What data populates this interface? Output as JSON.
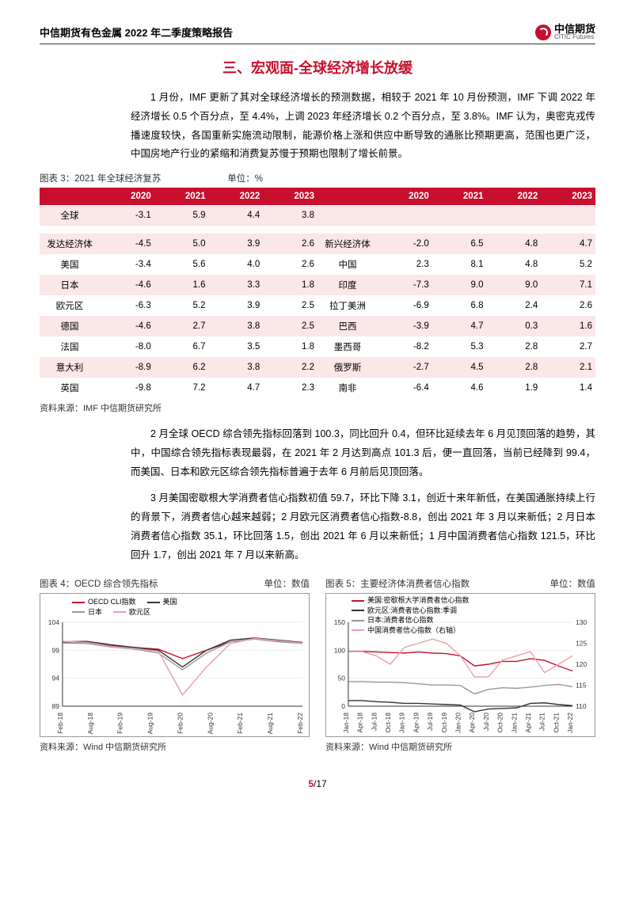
{
  "header": {
    "doc_title": "中信期货有色金属 2022 年二季度策略报告",
    "logo_cn": "中信期货",
    "logo_en": "CITIC Futures"
  },
  "section_title": "三、宏观面-全球经济增长放缓",
  "para1": "1 月份，IMF 更新了其对全球经济增长的预测数据，相较于 2021 年 10 月份预测，IMF 下调 2022 年经济增长 0.5 个百分点，至 4.4%，上调 2023 年经济增长 0.2 个百分点，至 3.8%。IMF 认为，奥密克戎传播速度较快，各国重新实施流动限制，能源价格上涨和供应中断导致的通胀比预期更高，范围也更广泛，中国房地产行业的紧缩和消费复苏慢于预期也限制了增长前景。",
  "table3": {
    "caption_left": "图表 3：2021 年全球经济复苏",
    "caption_unit": "单位：%",
    "header_years": [
      "2020",
      "2021",
      "2022",
      "2023"
    ],
    "left_rows": [
      {
        "label": "全球",
        "v": [
          "-3.1",
          "5.9",
          "4.4",
          "3.8"
        ],
        "alt": true
      },
      {
        "label": "",
        "v": [
          "",
          "",
          "",
          ""
        ],
        "alt": false
      },
      {
        "label": "发达经济体",
        "v": [
          "-4.5",
          "5.0",
          "3.9",
          "2.6"
        ],
        "alt": true
      },
      {
        "label": "美国",
        "v": [
          "-3.4",
          "5.6",
          "4.0",
          "2.6"
        ],
        "alt": false
      },
      {
        "label": "日本",
        "v": [
          "-4.6",
          "1.6",
          "3.3",
          "1.8"
        ],
        "alt": true
      },
      {
        "label": "欧元区",
        "v": [
          "-6.3",
          "5.2",
          "3.9",
          "2.5"
        ],
        "alt": false
      },
      {
        "label": "德国",
        "v": [
          "-4.6",
          "2.7",
          "3.8",
          "2.5"
        ],
        "alt": true
      },
      {
        "label": "法国",
        "v": [
          "-8.0",
          "6.7",
          "3.5",
          "1.8"
        ],
        "alt": false
      },
      {
        "label": "意大利",
        "v": [
          "-8.9",
          "6.2",
          "3.8",
          "2.2"
        ],
        "alt": true
      },
      {
        "label": "英国",
        "v": [
          "-9.8",
          "7.2",
          "4.7",
          "2.3"
        ],
        "alt": false
      }
    ],
    "right_rows": [
      {
        "label": "",
        "v": [
          "",
          "",
          "",
          ""
        ]
      },
      {
        "label": "",
        "v": [
          "",
          "",
          "",
          ""
        ]
      },
      {
        "label": "新兴经济体",
        "v": [
          "-2.0",
          "6.5",
          "4.8",
          "4.7"
        ]
      },
      {
        "label": "中国",
        "v": [
          "2.3",
          "8.1",
          "4.8",
          "5.2"
        ]
      },
      {
        "label": "印度",
        "v": [
          "-7.3",
          "9.0",
          "9.0",
          "7.1"
        ]
      },
      {
        "label": "拉丁美洲",
        "v": [
          "-6.9",
          "6.8",
          "2.4",
          "2.6"
        ]
      },
      {
        "label": "巴西",
        "v": [
          "-3.9",
          "4.7",
          "0.3",
          "1.6"
        ]
      },
      {
        "label": "墨西哥",
        "v": [
          "-8.2",
          "5.3",
          "2.8",
          "2.7"
        ]
      },
      {
        "label": "俄罗斯",
        "v": [
          "-2.7",
          "4.5",
          "2.8",
          "2.1"
        ]
      },
      {
        "label": "南非",
        "v": [
          "-6.4",
          "4.6",
          "1.9",
          "1.4"
        ]
      }
    ],
    "source": "资料来源：IMF 中信期货研究所"
  },
  "para2": "2 月全球 OECD 综合领先指标回落到 100.3，同比回升 0.4，但环比延续去年 6 月见顶回落的趋势，其中，中国综合领先指标表现最弱，在 2021 年 2 月达到高点 101.3 后，便一直回落，当前已经降到 99.4，而美国、日本和欧元区综合领先指标普遍于去年 6 月前后见顶回落。",
  "para3": "3 月美国密歇根大学消费者信心指数初值 59.7，环比下降 3.1，创近十来年新低，在美国通胀持续上行的背景下，消费者信心越来越弱；2 月欧元区消费者信心指数-8.8，创出 2021 年 3 月以来新低；2 月日本消费者信心指数 35.1，环比回落 1.5，创出 2021 年 6 月以来新低；1 月中国消费者信心指数 121.5，环比回升 1.7，创出 2021 年 7 月以来新高。",
  "chart4": {
    "caption_left": "图表 4：OECD 综合领先指标",
    "caption_unit": "单位：数值",
    "legend": [
      {
        "name": "OECD CLI指数",
        "color": "#c8102e"
      },
      {
        "name": "美国",
        "color": "#333333"
      },
      {
        "name": "日本",
        "color": "#999999"
      },
      {
        "name": "欧元区",
        "color": "#e8a0a8"
      }
    ],
    "y_ticks": [
      89,
      94,
      99,
      104
    ],
    "x_ticks": [
      "Feb-18",
      "Aug-18",
      "Feb-19",
      "Aug-19",
      "Feb-20",
      "Aug-20",
      "Feb-21",
      "Aug-21",
      "Feb-22"
    ],
    "ylim": [
      89,
      104
    ],
    "series": {
      "oecd": [
        100.5,
        100.4,
        99.8,
        99.5,
        99.2,
        97.5,
        99.0,
        100.5,
        101.0,
        100.6,
        100.3
      ],
      "us": [
        100.5,
        100.6,
        100.0,
        99.5,
        99.0,
        96.0,
        99.0,
        100.8,
        101.2,
        100.8,
        100.4
      ],
      "jp": [
        100.3,
        100.2,
        99.6,
        99.2,
        98.5,
        95.5,
        98.5,
        100.5,
        101.0,
        100.5,
        100.2
      ],
      "eu": [
        100.6,
        100.4,
        99.7,
        99.3,
        98.8,
        91.0,
        96.0,
        100.2,
        101.1,
        100.7,
        100.3
      ]
    },
    "source": "资料来源：Wind 中信期货研究所"
  },
  "chart5": {
    "caption_left": "图表 5：主要经济体消费者信心指数",
    "caption_unit": "单位：数值",
    "legend": [
      {
        "name": "美国:密歇根大学消费者信心指数",
        "color": "#c8102e"
      },
      {
        "name": "欧元区:消费者信心指数:季调",
        "color": "#333333"
      },
      {
        "name": "日本:消费者信心指数",
        "color": "#999999"
      },
      {
        "name": "中国消费者信心指数（右轴）",
        "color": "#e8a0a8"
      }
    ],
    "y_left_ticks": [
      0,
      50,
      100,
      150
    ],
    "y_right_ticks": [
      110,
      115,
      120,
      125,
      130
    ],
    "x_ticks": [
      "Jan-18",
      "Apr-18",
      "Jul-18",
      "Oct-18",
      "Jan-19",
      "Apr-19",
      "Jul-19",
      "Oct-19",
      "Jan-20",
      "Apr-20",
      "Jul-20",
      "Oct-20",
      "Jan-21",
      "Apr-21",
      "Jul-21",
      "Oct-21",
      "Jan-22"
    ],
    "ylim_left": [
      0,
      150
    ],
    "ylim_right": [
      110,
      130
    ],
    "series": {
      "us": [
        98,
        98,
        97,
        96,
        95,
        97,
        95,
        94,
        90,
        72,
        75,
        80,
        80,
        85,
        82,
        72,
        63
      ],
      "eu": [
        0,
        0,
        -2,
        -3,
        -5,
        -5,
        -6,
        -7,
        -8,
        -20,
        -15,
        -14,
        -13,
        -5,
        -4,
        -7,
        -9
      ],
      "jp": [
        44,
        44,
        43,
        43,
        42,
        40,
        38,
        38,
        37,
        22,
        30,
        33,
        32,
        34,
        37,
        39,
        35
      ],
      "cn": [
        123,
        123,
        122,
        120,
        124,
        125,
        126,
        125,
        122,
        117,
        117,
        121,
        122,
        123,
        118,
        120,
        122
      ]
    },
    "source": "资料来源：Wind 中信期货研究所"
  },
  "footer": {
    "page": "5",
    "total": "/17"
  }
}
